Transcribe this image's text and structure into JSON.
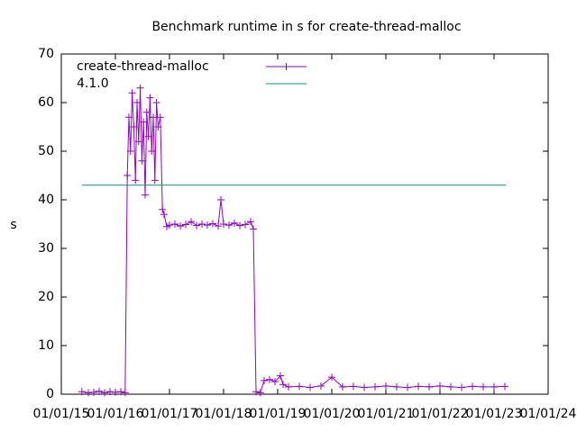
{
  "chart_data": {
    "type": "line",
    "title": "Benchmark runtime in s for create-thread-malloc",
    "y_label": "s",
    "xlim": [
      2015,
      2024
    ],
    "xticks": [
      {
        "value": 2015,
        "label": "01/01/15"
      },
      {
        "value": 2016,
        "label": "01/01/16"
      },
      {
        "value": 2017,
        "label": "01/01/17"
      },
      {
        "value": 2018,
        "label": "01/01/18"
      },
      {
        "value": 2019,
        "label": "01/01/19"
      },
      {
        "value": 2020,
        "label": "01/01/20"
      },
      {
        "value": 2021,
        "label": "01/01/21"
      },
      {
        "value": 2022,
        "label": "01/01/22"
      },
      {
        "value": 2023,
        "label": "01/01/23"
      },
      {
        "value": 2024,
        "label": "01/01/24"
      }
    ],
    "ylim": [
      0,
      70
    ],
    "yticks": [
      0,
      10,
      20,
      30,
      40,
      50,
      60,
      70
    ],
    "legend": "top-left",
    "series": [
      {
        "name": "create-thread-malloc",
        "color": "#9400d3",
        "markers": true,
        "x": [
          2015.38,
          2015.5,
          2015.6,
          2015.7,
          2015.8,
          2015.9,
          2016.0,
          2016.1,
          2016.18,
          2016.22,
          2016.25,
          2016.28,
          2016.31,
          2016.34,
          2016.37,
          2016.4,
          2016.43,
          2016.46,
          2016.49,
          2016.52,
          2016.55,
          2016.58,
          2016.61,
          2016.64,
          2016.67,
          2016.7,
          2016.73,
          2016.76,
          2016.79,
          2016.83,
          2016.87,
          2016.9,
          2016.95,
          2017.0,
          2017.1,
          2017.2,
          2017.3,
          2017.4,
          2017.5,
          2017.6,
          2017.7,
          2017.8,
          2017.9,
          2017.95,
          2018.0,
          2018.1,
          2018.2,
          2018.3,
          2018.4,
          2018.5,
          2018.55,
          2018.6,
          2018.68,
          2018.75,
          2018.85,
          2018.95,
          2019.05,
          2019.1,
          2019.2,
          2019.4,
          2019.6,
          2019.8,
          2020.0,
          2020.2,
          2020.4,
          2020.6,
          2020.8,
          2021.0,
          2021.2,
          2021.4,
          2021.6,
          2021.8,
          2022.0,
          2022.2,
          2022.4,
          2022.6,
          2022.8,
          2023.0,
          2023.2
        ],
        "values": [
          0.5,
          0.3,
          0.4,
          0.6,
          0.3,
          0.5,
          0.4,
          0.5,
          0.3,
          45,
          57,
          50,
          62,
          55,
          44,
          60,
          52,
          63,
          48,
          56,
          41,
          58,
          53,
          61,
          50,
          57,
          44,
          60,
          55,
          57,
          38,
          37,
          34.5,
          34.8,
          35,
          34.6,
          34.9,
          35.5,
          34.7,
          35,
          34.8,
          35.1,
          34.6,
          40,
          35,
          34.8,
          35.2,
          34.7,
          34.9,
          35.5,
          34,
          0.5,
          0.3,
          2.8,
          3,
          2.6,
          3.8,
          2,
          1.5,
          1.6,
          1.4,
          1.7,
          3.5,
          1.5,
          1.6,
          1.4,
          1.5,
          1.7,
          1.5,
          1.4,
          1.6,
          1.5,
          1.7,
          1.5,
          1.4,
          1.6,
          1.5,
          1.5,
          1.6
        ]
      },
      {
        "name": "4.1.0",
        "color": "#009e73",
        "markers": false,
        "x": [
          2015.38,
          2023.22
        ],
        "values": [
          43,
          43
        ]
      }
    ]
  }
}
